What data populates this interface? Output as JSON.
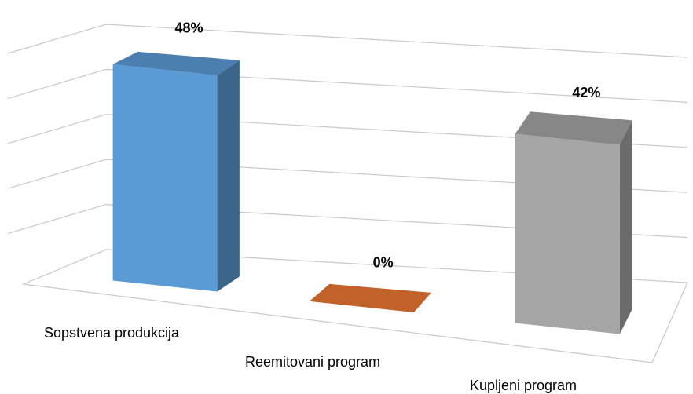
{
  "chart_data": {
    "type": "bar3d",
    "categories": [
      "Sopstvena produkcija",
      "Reemitovani program",
      "Kupljeni program"
    ],
    "values": [
      48,
      0,
      42
    ],
    "value_labels": [
      "48%",
      "0%",
      "42%"
    ],
    "colors": [
      "#5b9bd5",
      "#c0622a",
      "#a5a5a5"
    ],
    "ylim": [
      0,
      50
    ],
    "yticks": [
      0,
      10,
      20,
      30,
      40,
      50
    ],
    "grid": true
  }
}
